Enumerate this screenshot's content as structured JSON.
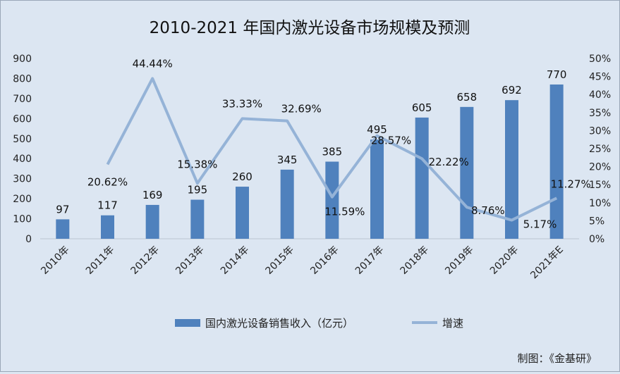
{
  "chart_data": {
    "type": "bar",
    "title": "2010-2021 年国内激光设备市场规模及预测",
    "categories": [
      "2010年",
      "2011年",
      "2012年",
      "2013年",
      "2014年",
      "2015年",
      "2016年",
      "2017年",
      "2018年",
      "2019年",
      "2020年",
      "2021年E"
    ],
    "series": [
      {
        "name": "国内激光设备销售收入（亿元）",
        "type": "bar",
        "axis": "left",
        "color": "#4f81bd",
        "values": [
          97,
          117,
          169,
          195,
          260,
          345,
          385,
          495,
          605,
          658,
          692,
          770
        ],
        "labels": [
          "97",
          "117",
          "169",
          "195",
          "260",
          "345",
          "385",
          "495",
          "605",
          "658",
          "692",
          "770"
        ]
      },
      {
        "name": "增速",
        "type": "line",
        "axis": "right",
        "color": "#95b3d7",
        "values": [
          null,
          20.62,
          44.44,
          15.38,
          33.33,
          32.69,
          11.59,
          28.57,
          22.22,
          8.76,
          5.17,
          11.27
        ],
        "labels": [
          "",
          "20.62%",
          "44.44%",
          "15.38%",
          "33.33%",
          "32.69%",
          "11.59%",
          "28.57%",
          "22.22%",
          "8.76%",
          "5.17%",
          "11.27%"
        ]
      }
    ],
    "y_left": {
      "min": 0,
      "max": 900,
      "ticks": [
        "0",
        "100",
        "200",
        "300",
        "400",
        "500",
        "600",
        "700",
        "800",
        "900"
      ]
    },
    "y_right": {
      "min": 0,
      "max": 50,
      "ticks": [
        "0%",
        "5%",
        "10%",
        "15%",
        "20%",
        "25%",
        "30%",
        "35%",
        "40%",
        "45%",
        "50%"
      ]
    },
    "grid": false,
    "legend_position": "bottom"
  },
  "source_note": "制图：《金基研》"
}
